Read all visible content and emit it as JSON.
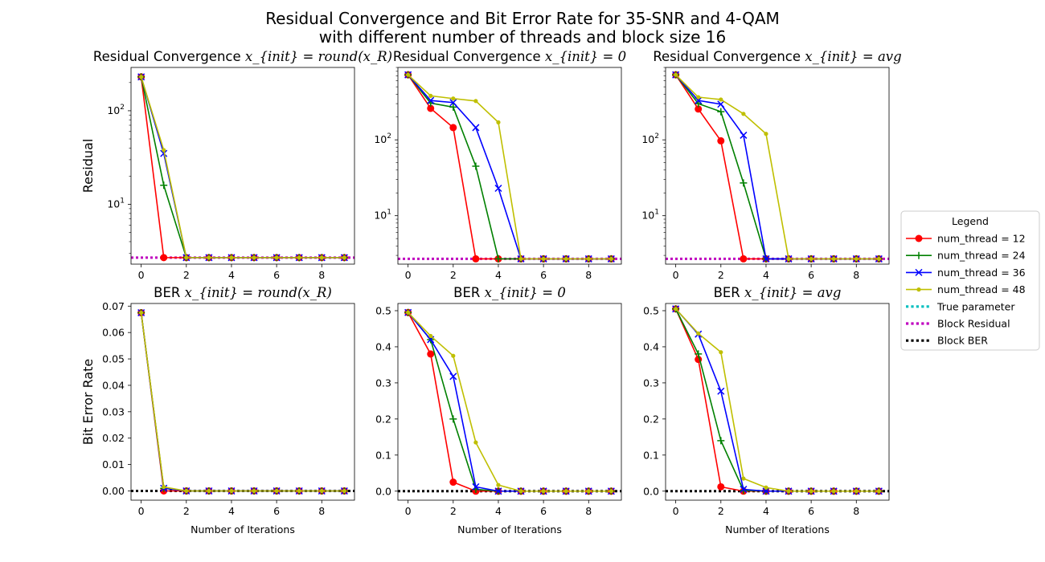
{
  "figure": {
    "suptitle_line1": "Residual Convergence and Bit Error Rate for 35-SNR and 4-QAM",
    "suptitle_line2": "with different number of threads and block size 16"
  },
  "legend": {
    "title": "Legend",
    "entries": [
      {
        "label": "num_thread = 12",
        "color": "#ff0000",
        "marker": "circle",
        "style": "solid"
      },
      {
        "label": "num_thread = 24",
        "color": "#008000",
        "marker": "plus",
        "style": "solid"
      },
      {
        "label": "num_thread = 36",
        "color": "#0000ff",
        "marker": "x",
        "style": "solid"
      },
      {
        "label": "num_thread = 48",
        "color": "#bfbf00",
        "marker": "dot",
        "style": "solid"
      },
      {
        "label": "True parameter",
        "color": "#00bfbf",
        "marker": "none",
        "style": "dotted"
      },
      {
        "label": "Block Residual",
        "color": "#bf00bf",
        "marker": "none",
        "style": "dotted"
      },
      {
        "label": "Block BER",
        "color": "#000000",
        "marker": "none",
        "style": "dotted"
      }
    ]
  },
  "chart_data": [
    {
      "type": "line",
      "title_prefix": "Residual Convergence ",
      "title_math": "x_{init} = round(x_R)",
      "ylabel": "Residual",
      "xlabel": "",
      "yscale": "log",
      "ylim": [
        2.3,
        290
      ],
      "xlim": [
        -0.45,
        9.45
      ],
      "x": [
        0,
        1,
        2,
        3,
        4,
        5,
        6,
        7,
        8,
        9
      ],
      "xticks": [
        0,
        2,
        4,
        6,
        8
      ],
      "series": [
        {
          "name": "num_thread = 12",
          "values": [
            230,
            2.7,
            2.7,
            2.7,
            2.7,
            2.7,
            2.7,
            2.7,
            2.7,
            2.7
          ]
        },
        {
          "name": "num_thread = 24",
          "values": [
            230,
            16,
            2.7,
            2.7,
            2.7,
            2.7,
            2.7,
            2.7,
            2.7,
            2.7
          ]
        },
        {
          "name": "num_thread = 36",
          "values": [
            230,
            35,
            2.7,
            2.7,
            2.7,
            2.7,
            2.7,
            2.7,
            2.7,
            2.7
          ]
        },
        {
          "name": "num_thread = 48",
          "values": [
            230,
            38,
            2.7,
            2.7,
            2.7,
            2.7,
            2.7,
            2.7,
            2.7,
            2.7
          ]
        }
      ],
      "reference_lines": [
        {
          "name": "Block Residual",
          "value": 2.7
        }
      ]
    },
    {
      "type": "line",
      "title_prefix": "Residual Convergence ",
      "title_math": "x_{init} = 0",
      "ylabel": "",
      "xlabel": "",
      "yscale": "log",
      "ylim": [
        2.3,
        900
      ],
      "xlim": [
        -0.45,
        9.45
      ],
      "x": [
        0,
        1,
        2,
        3,
        4,
        5,
        6,
        7,
        8,
        9
      ],
      "xticks": [
        0,
        2,
        4,
        6,
        8
      ],
      "series": [
        {
          "name": "num_thread = 12",
          "values": [
            720,
            260,
            145,
            2.7,
            2.7,
            2.7,
            2.7,
            2.7,
            2.7,
            2.7
          ]
        },
        {
          "name": "num_thread = 24",
          "values": [
            720,
            305,
            270,
            45,
            2.7,
            2.7,
            2.7,
            2.7,
            2.7,
            2.7
          ]
        },
        {
          "name": "num_thread = 36",
          "values": [
            720,
            330,
            310,
            145,
            23,
            2.7,
            2.7,
            2.7,
            2.7,
            2.7
          ]
        },
        {
          "name": "num_thread = 48",
          "values": [
            720,
            380,
            350,
            325,
            170,
            2.7,
            2.7,
            2.7,
            2.7,
            2.7
          ]
        }
      ],
      "reference_lines": [
        {
          "name": "Block Residual",
          "value": 2.7
        }
      ]
    },
    {
      "type": "line",
      "title_prefix": "Residual Convergence ",
      "title_math": "x_{init} = avg",
      "ylabel": "",
      "xlabel": "",
      "yscale": "log",
      "ylim": [
        2.3,
        900
      ],
      "xlim": [
        -0.45,
        9.45
      ],
      "x": [
        0,
        1,
        2,
        3,
        4,
        5,
        6,
        7,
        8,
        9
      ],
      "xticks": [
        0,
        2,
        4,
        6,
        8
      ],
      "series": [
        {
          "name": "num_thread = 12",
          "values": [
            720,
            255,
            97,
            2.7,
            2.7,
            2.7,
            2.7,
            2.7,
            2.7,
            2.7
          ]
        },
        {
          "name": "num_thread = 24",
          "values": [
            720,
            300,
            235,
            27,
            2.7,
            2.7,
            2.7,
            2.7,
            2.7,
            2.7
          ]
        },
        {
          "name": "num_thread = 36",
          "values": [
            720,
            330,
            295,
            115,
            2.7,
            2.7,
            2.7,
            2.7,
            2.7,
            2.7
          ]
        },
        {
          "name": "num_thread = 48",
          "values": [
            720,
            365,
            340,
            220,
            120,
            2.7,
            2.7,
            2.7,
            2.7,
            2.7
          ]
        }
      ],
      "reference_lines": [
        {
          "name": "Block Residual",
          "value": 2.7
        }
      ]
    },
    {
      "type": "line",
      "title_prefix": "BER ",
      "title_math": "x_{init} = round(x_R)",
      "ylabel": "Bit Error Rate",
      "xlabel": "Number of Iterations",
      "yscale": "linear",
      "ylim": [
        -0.0035,
        0.071
      ],
      "xlim": [
        -0.45,
        9.45
      ],
      "yticks": [
        0.0,
        0.01,
        0.02,
        0.03,
        0.04,
        0.05,
        0.06,
        0.07
      ],
      "yticklabels": [
        "0.00",
        "0.01",
        "0.02",
        "0.03",
        "0.04",
        "0.05",
        "0.06",
        "0.07"
      ],
      "x": [
        0,
        1,
        2,
        3,
        4,
        5,
        6,
        7,
        8,
        9
      ],
      "xticks": [
        0,
        2,
        4,
        6,
        8
      ],
      "series": [
        {
          "name": "num_thread = 12",
          "values": [
            0.0675,
            0,
            0,
            0,
            0,
            0,
            0,
            0,
            0,
            0
          ]
        },
        {
          "name": "num_thread = 24",
          "values": [
            0.0675,
            0.001,
            0,
            0,
            0,
            0,
            0,
            0,
            0,
            0
          ]
        },
        {
          "name": "num_thread = 36",
          "values": [
            0.0675,
            0.001,
            0,
            0,
            0,
            0,
            0,
            0,
            0,
            0
          ]
        },
        {
          "name": "num_thread = 48",
          "values": [
            0.0675,
            0.0015,
            0,
            0,
            0,
            0,
            0,
            0,
            0,
            0
          ]
        }
      ],
      "reference_lines": [
        {
          "name": "Block BER",
          "value": 0
        }
      ]
    },
    {
      "type": "line",
      "title_prefix": "BER ",
      "title_math": "x_{init} = 0",
      "ylabel": "",
      "xlabel": "Number of Iterations",
      "yscale": "linear",
      "ylim": [
        -0.025,
        0.52
      ],
      "xlim": [
        -0.45,
        9.45
      ],
      "yticks": [
        0,
        0.1,
        0.2,
        0.3,
        0.4,
        0.5
      ],
      "yticklabels": [
        "0.0",
        "0.1",
        "0.2",
        "0.3",
        "0.4",
        "0.5"
      ],
      "x": [
        0,
        1,
        2,
        3,
        4,
        5,
        6,
        7,
        8,
        9
      ],
      "xticks": [
        0,
        2,
        4,
        6,
        8
      ],
      "series": [
        {
          "name": "num_thread = 12",
          "values": [
            0.495,
            0.38,
            0.025,
            0,
            0,
            0,
            0,
            0,
            0,
            0
          ]
        },
        {
          "name": "num_thread = 24",
          "values": [
            0.495,
            0.42,
            0.2,
            0.005,
            0,
            0,
            0,
            0,
            0,
            0
          ]
        },
        {
          "name": "num_thread = 36",
          "values": [
            0.495,
            0.42,
            0.318,
            0.012,
            0,
            0,
            0,
            0,
            0,
            0
          ]
        },
        {
          "name": "num_thread = 48",
          "values": [
            0.495,
            0.43,
            0.375,
            0.135,
            0.017,
            0,
            0,
            0,
            0,
            0
          ]
        }
      ],
      "reference_lines": [
        {
          "name": "Block BER",
          "value": 0
        }
      ]
    },
    {
      "type": "line",
      "title_prefix": "BER ",
      "title_math": "x_{init} = avg",
      "ylabel": "",
      "xlabel": "Number of Iterations",
      "yscale": "linear",
      "ylim": [
        -0.025,
        0.52
      ],
      "xlim": [
        -0.45,
        9.45
      ],
      "yticks": [
        0,
        0.1,
        0.2,
        0.3,
        0.4,
        0.5
      ],
      "yticklabels": [
        "0.0",
        "0.1",
        "0.2",
        "0.3",
        "0.4",
        "0.5"
      ],
      "x": [
        0,
        1,
        2,
        3,
        4,
        5,
        6,
        7,
        8,
        9
      ],
      "xticks": [
        0,
        2,
        4,
        6,
        8
      ],
      "series": [
        {
          "name": "num_thread = 12",
          "values": [
            0.505,
            0.365,
            0.012,
            0,
            0,
            0,
            0,
            0,
            0,
            0
          ]
        },
        {
          "name": "num_thread = 24",
          "values": [
            0.505,
            0.38,
            0.14,
            0.002,
            0,
            0,
            0,
            0,
            0,
            0
          ]
        },
        {
          "name": "num_thread = 36",
          "values": [
            0.505,
            0.435,
            0.277,
            0.005,
            0,
            0,
            0,
            0,
            0,
            0
          ]
        },
        {
          "name": "num_thread = 48",
          "values": [
            0.505,
            0.437,
            0.385,
            0.035,
            0.01,
            0,
            0,
            0,
            0,
            0
          ]
        }
      ],
      "reference_lines": [
        {
          "name": "Block BER",
          "value": 0
        }
      ]
    }
  ]
}
